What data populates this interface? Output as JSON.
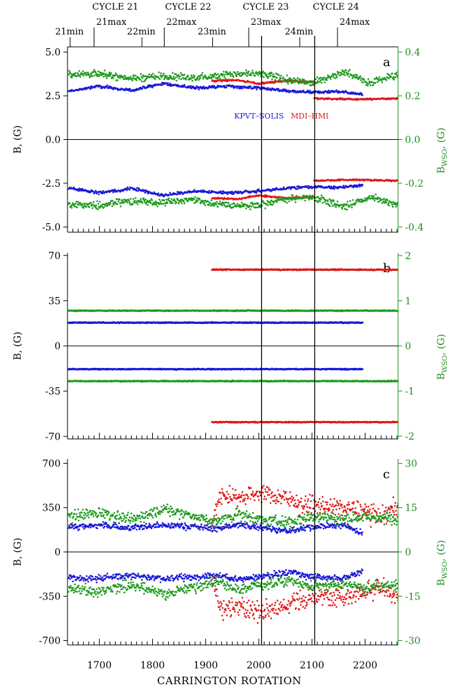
{
  "chart_data": {
    "type": "scatter",
    "x_label": "CARRINGTON ROTATION",
    "x_range": [
      1640,
      2262
    ],
    "x_ticks": [
      "1700",
      "1800",
      "1900",
      "2000",
      "2100",
      "2200"
    ],
    "x_tick_values": [
      1700,
      1800,
      1900,
      2000,
      2100,
      2200
    ],
    "cycles": [
      {
        "label": "CYCLE 21",
        "x": 1730
      },
      {
        "label": "CYCLE 22",
        "x": 1867
      },
      {
        "label": "CYCLE 23",
        "x": 2013
      },
      {
        "label": "CYCLE 24",
        "x": 2145
      }
    ],
    "epochs": [
      {
        "label": "21min",
        "x": 1645,
        "row": 2
      },
      {
        "label": "21max",
        "x": 1690,
        "row": 1
      },
      {
        "label": "22min",
        "x": 1780,
        "row": 2
      },
      {
        "label": "22max",
        "x": 1822,
        "row": 1
      },
      {
        "label": "23min",
        "x": 1913,
        "row": 2
      },
      {
        "label": "23max",
        "x": 1981,
        "row": 1
      },
      {
        "label": "24min",
        "x": 2077,
        "row": 2
      },
      {
        "label": "24max",
        "x": 2148,
        "row": 1
      }
    ],
    "vertical_lines": [
      2005,
      2105
    ],
    "legend": [
      {
        "label": "KPVT–SOLIS",
        "color": "#1a1ad6"
      },
      {
        "label": "MDI–HMI",
        "color": "#e01818"
      }
    ],
    "colors": {
      "kpvt": "#1a1ad6",
      "mdi": "#e01818",
      "wso": "#1e9a1e",
      "axis": "#000000",
      "right_axis": "#1e8c1e"
    },
    "panels": [
      {
        "id": "a",
        "y_label": "B, (G)",
        "y2_label_main": "B",
        "y2_label_sub": "WSO",
        "y2_label_unit": ", (G)",
        "y_range": [
          -5.3,
          5.3
        ],
        "y_ticks": [
          "5.0",
          "2.5",
          "0.0",
          "-2.5",
          "-5.0"
        ],
        "y_tick_values": [
          5.0,
          2.5,
          0.0,
          -2.5,
          -5.0
        ],
        "y2_range": [
          -0.424,
          0.424
        ],
        "y2_ticks": [
          "0.4",
          "0.2",
          "0.0",
          "-0.2",
          "-0.4"
        ],
        "y2_tick_values": [
          0.4,
          0.2,
          0.0,
          -0.2,
          -0.4
        ],
        "series": [
          {
            "name": "KPVT–SOLIS",
            "color": "#1a1ad6",
            "x_range": [
              1642,
              2195
            ],
            "mean": 2.9,
            "noise": 0.07,
            "knots": [
              [
                1640,
                2.75
              ],
              [
                1700,
                3.05
              ],
              [
                1760,
                2.8
              ],
              [
                1820,
                3.2
              ],
              [
                1880,
                2.95
              ],
              [
                1940,
                3.05
              ],
              [
                2000,
                2.95
              ],
              [
                2060,
                2.75
              ],
              [
                2100,
                2.7
              ],
              [
                2150,
                2.75
              ],
              [
                2195,
                2.6
              ]
            ]
          },
          {
            "name": "MDI–HMI",
            "color": "#e01818",
            "x_range": [
              1912,
              2262
            ],
            "mean": 3.3,
            "noise": 0.04,
            "knots": [
              [
                1912,
                3.35
              ],
              [
                1960,
                3.4
              ],
              [
                2000,
                3.2
              ],
              [
                2050,
                3.35
              ],
              [
                2103,
                3.3
              ],
              [
                2104,
                2.35
              ],
              [
                2180,
                2.3
              ],
              [
                2262,
                2.35
              ]
            ]
          },
          {
            "name": "WSO",
            "color": "#1e9a1e",
            "axis": "right",
            "x_range": [
              1642,
              2262
            ],
            "mean": 0.29,
            "noise": 0.014,
            "knots": [
              [
                1640,
                0.3
              ],
              [
                1700,
                0.3
              ],
              [
                1760,
                0.28
              ],
              [
                1820,
                0.29
              ],
              [
                1880,
                0.28
              ],
              [
                1940,
                0.3
              ],
              [
                2000,
                0.3
              ],
              [
                2060,
                0.27
              ],
              [
                2100,
                0.26
              ],
              [
                2160,
                0.31
              ],
              [
                2210,
                0.26
              ],
              [
                2262,
                0.3
              ]
            ]
          }
        ],
        "panel_letter": "a"
      },
      {
        "id": "b",
        "y_label": "B, (G)",
        "y2_label_main": "B",
        "y2_label_sub": "WSO",
        "y2_label_unit": ", (G)",
        "y_range": [
          -72,
          72
        ],
        "y_ticks": [
          "70",
          "35",
          "0",
          "-35",
          "-70"
        ],
        "y_tick_values": [
          70,
          35,
          0,
          -35,
          -70
        ],
        "y2_range": [
          -2.06,
          2.06
        ],
        "y2_ticks": [
          "2",
          "1",
          "0",
          "-1",
          "-2"
        ],
        "y2_tick_values": [
          2,
          1,
          0,
          -1,
          -2
        ],
        "series": [
          {
            "name": "KPVT–SOLIS",
            "color": "#1a1ad6",
            "x_range": [
              1642,
              2195
            ],
            "mean": 18,
            "noise": 0.3,
            "knots": [
              [
                1640,
                18
              ],
              [
                2195,
                18
              ]
            ]
          },
          {
            "name": "MDI–HMI",
            "color": "#e01818",
            "x_range": [
              1912,
              2262
            ],
            "mean": 59,
            "noise": 0.3,
            "knots": [
              [
                1912,
                59
              ],
              [
                2262,
                59
              ]
            ]
          },
          {
            "name": "WSO",
            "color": "#1e9a1e",
            "axis": "right",
            "x_range": [
              1642,
              2262
            ],
            "mean": 0.78,
            "noise": 0.008,
            "knots": [
              [
                1640,
                0.78
              ],
              [
                2262,
                0.78
              ]
            ]
          }
        ],
        "panel_letter": "b"
      },
      {
        "id": "c",
        "y_label": "B, (G)",
        "y2_label_main": "B",
        "y2_label_sub": "WSO",
        "y2_label_unit": ", (G)",
        "y_range": [
          -735,
          735
        ],
        "y_ticks": [
          "700",
          "350",
          "0",
          "-350",
          "-700"
        ],
        "y_tick_values": [
          700,
          350,
          0,
          -350,
          -700
        ],
        "y2_range": [
          -31.5,
          31.5
        ],
        "y2_ticks": [
          "30",
          "15",
          "0",
          "-15",
          "-30"
        ],
        "y2_tick_values": [
          30,
          15,
          0,
          -15,
          -30
        ],
        "series": [
          {
            "name": "KPVT–SOLIS",
            "color": "#1a1ad6",
            "x_range": [
              1642,
              2195
            ],
            "mean": 200,
            "noise": 22,
            "knots": [
              [
                1640,
                200
              ],
              [
                1700,
                210
              ],
              [
                1760,
                190
              ],
              [
                1820,
                210
              ],
              [
                1880,
                200
              ],
              [
                1920,
                185
              ],
              [
                1960,
                215
              ],
              [
                2000,
                200
              ],
              [
                2060,
                160
              ],
              [
                2100,
                200
              ],
              [
                2160,
                210
              ],
              [
                2195,
                150
              ]
            ]
          },
          {
            "name": "MDI–HMI",
            "color": "#e01818",
            "x_range": [
              1912,
              2262
            ],
            "mean": 420,
            "noise": 45,
            "knots": [
              [
                1912,
                240
              ],
              [
                1930,
                460
              ],
              [
                1960,
                430
              ],
              [
                2000,
                470
              ],
              [
                2040,
                440
              ],
              [
                2080,
                380
              ],
              [
                2110,
                360
              ],
              [
                2160,
                350
              ],
              [
                2200,
                320
              ],
              [
                2230,
                270
              ],
              [
                2262,
                380
              ]
            ]
          },
          {
            "name": "WSO",
            "color": "#1e9a1e",
            "axis": "right",
            "x_range": [
              1642,
              2262
            ],
            "mean": 13,
            "noise": 1.6,
            "knots": [
              [
                1640,
                12
              ],
              [
                1700,
                13.5
              ],
              [
                1760,
                11
              ],
              [
                1820,
                14.5
              ],
              [
                1880,
                12
              ],
              [
                1920,
                10
              ],
              [
                1960,
                13
              ],
              [
                2000,
                11
              ],
              [
                2060,
                10
              ],
              [
                2100,
                12
              ],
              [
                2160,
                11
              ],
              [
                2200,
                12
              ],
              [
                2262,
                11
              ]
            ]
          }
        ],
        "panel_letter": "c"
      }
    ]
  }
}
